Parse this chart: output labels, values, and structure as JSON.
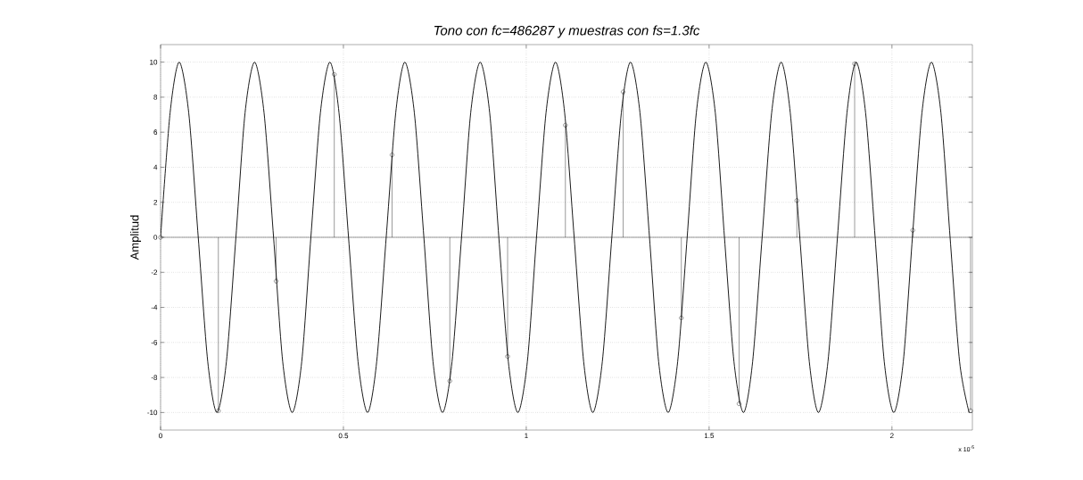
{
  "chart_data": {
    "type": "line",
    "title": "Tono con fc=486287 y muestras con fs=1.3fc",
    "ylabel": "Amplitud",
    "annotations": [
      "x 10$^{-5}$"
    ],
    "xlim": [
      0,
      2.22
    ],
    "ylim": [
      -11,
      11
    ],
    "xticks": [
      0,
      0.5,
      1,
      1.5,
      2
    ],
    "yticks": [
      -10,
      -8,
      -6,
      -4,
      -2,
      0,
      2,
      4,
      6,
      8,
      10
    ],
    "grid": true,
    "line_style": "solid",
    "ref_lines": [
      {
        "axis": "y",
        "value": 0,
        "color": "#000000"
      }
    ],
    "series": [
      {
        "color": "#000000",
        "marker": "none",
        "x": [
          0,
          0.026,
          0.051,
          0.077,
          0.103,
          0.129,
          0.154,
          0.18,
          0.206,
          0.231,
          0.257,
          0.283,
          0.309,
          0.334,
          0.36,
          0.386,
          0.411,
          0.437,
          0.463,
          0.488,
          0.514,
          0.54,
          0.566,
          0.591,
          0.617,
          0.643,
          0.668,
          0.694,
          0.72,
          0.745,
          0.771,
          0.797,
          0.823,
          0.848,
          0.874,
          0.9,
          0.925,
          0.951,
          0.977,
          1.003,
          1.028,
          1.054,
          1.08,
          1.105,
          1.131,
          1.157,
          1.182,
          1.208,
          1.234,
          1.26,
          1.285,
          1.311,
          1.337,
          1.362,
          1.388,
          1.414,
          1.44,
          1.465,
          1.491,
          1.517,
          1.542,
          1.568,
          1.594,
          1.619,
          1.645,
          1.671,
          1.697,
          1.722,
          1.748,
          1.774,
          1.799,
          1.825,
          1.851,
          1.877,
          1.902,
          1.928,
          1.954,
          1.979,
          2.005,
          2.031,
          2.056,
          2.082,
          2.108,
          2.134,
          2.159,
          2.185,
          2.211
        ],
        "values": [
          0,
          7.1,
          10,
          7.1,
          0,
          -7.1,
          -10,
          -7.1,
          0,
          7.1,
          10,
          7.1,
          0,
          -7.1,
          -10,
          -7.1,
          0,
          7.1,
          10,
          7.1,
          0,
          -7.1,
          -10,
          -7.1,
          0,
          7.1,
          10,
          7.1,
          0,
          -7.1,
          -10,
          -7.1,
          0,
          7.1,
          10,
          7.1,
          0,
          -7.1,
          -10,
          -7.1,
          0,
          7.1,
          10,
          7.1,
          0,
          -7.1,
          -10,
          -7.1,
          0,
          7.1,
          10,
          7.1,
          0,
          -7.1,
          -10,
          -7.1,
          0,
          7.1,
          10,
          7.1,
          0,
          -7.1,
          -10,
          -7.1,
          0,
          7.1,
          10,
          7.1,
          0,
          -7.1,
          -10,
          -7.1,
          0,
          7.1,
          10,
          7.1,
          0,
          -7.1,
          -10,
          -7.1,
          0,
          7.1,
          10,
          7.1,
          0,
          -7.1,
          -10
        ]
      },
      {
        "type": "lollipop",
        "color": "#000000",
        "marker": "circle",
        "x": [
          0,
          0.158,
          0.316,
          0.475,
          0.633,
          0.791,
          0.949,
          1.107,
          1.265,
          1.424,
          1.582,
          1.74,
          1.898,
          2.057,
          2.215
        ],
        "values": [
          0,
          -9.9,
          -2.5,
          9.3,
          4.7,
          -8.2,
          -6.8,
          6.4,
          8.3,
          -4.6,
          -9.5,
          2.1,
          9.9,
          0.4,
          -9.9
        ]
      }
    ]
  }
}
